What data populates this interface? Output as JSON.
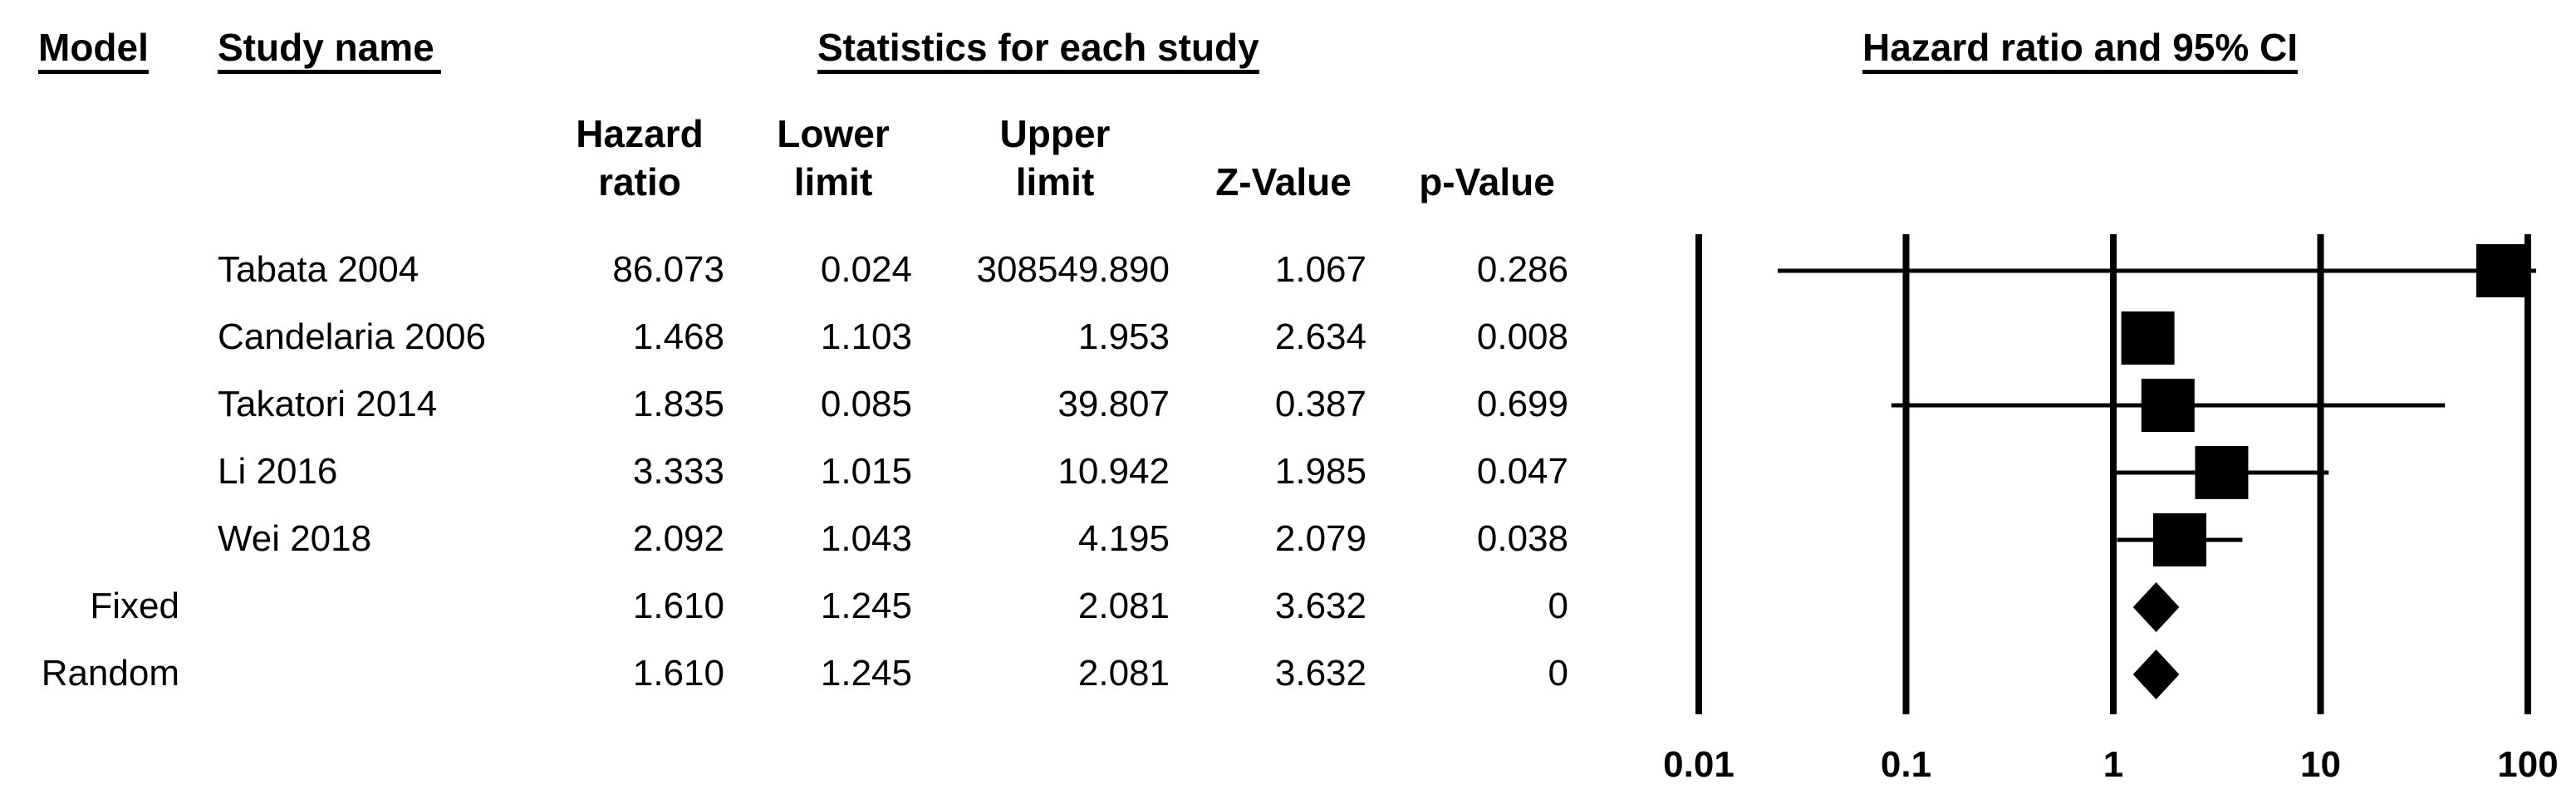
{
  "headers": {
    "model": "Model",
    "study_name": "Study name",
    "statistics": "Statistics for each study",
    "plot": "Hazard ratio and 95% CI"
  },
  "columns": {
    "hazard_ratio": "Hazard\nratio",
    "lower_limit": "Lower\nlimit",
    "upper_limit": "Upper\nlimit",
    "z_value": "Z-Value",
    "p_value": "p-Value"
  },
  "rows": [
    {
      "model": "",
      "study": "Tabata 2004",
      "hr": "86.073",
      "lower": "0.024",
      "upper": "308549.890",
      "z": "1.067",
      "p": "0.286"
    },
    {
      "model": "",
      "study": "Candelaria 2006",
      "hr": "1.468",
      "lower": "1.103",
      "upper": "1.953",
      "z": "2.634",
      "p": "0.008"
    },
    {
      "model": "",
      "study": "Takatori 2014",
      "hr": "1.835",
      "lower": "0.085",
      "upper": "39.807",
      "z": "0.387",
      "p": "0.699"
    },
    {
      "model": "",
      "study": "Li 2016",
      "hr": "3.333",
      "lower": "1.015",
      "upper": "10.942",
      "z": "1.985",
      "p": "0.047"
    },
    {
      "model": "",
      "study": "Wei 2018",
      "hr": "2.092",
      "lower": "1.043",
      "upper": "4.195",
      "z": "2.079",
      "p": "0.038"
    },
    {
      "model": "Fixed",
      "study": "",
      "hr": "1.610",
      "lower": "1.245",
      "upper": "2.081",
      "z": "3.632",
      "p": "0"
    },
    {
      "model": "Random",
      "study": "",
      "hr": "1.610",
      "lower": "1.245",
      "upper": "2.081",
      "z": "3.632",
      "p": "0"
    }
  ],
  "chart_data": {
    "type": "forest",
    "scale": "log",
    "xlim": [
      0.01,
      100
    ],
    "ticks": [
      0.01,
      0.1,
      1,
      10,
      100
    ],
    "tick_labels": [
      "0.01",
      "0.1",
      "1",
      "10",
      "100"
    ],
    "title": "Hazard ratio and 95% CI",
    "grid": true,
    "studies": [
      {
        "label": "Tabata 2004",
        "hr": 86.073,
        "lower": 0.024,
        "upper": 308549.89,
        "marker": "square"
      },
      {
        "label": "Candelaria 2006",
        "hr": 1.468,
        "lower": 1.103,
        "upper": 1.953,
        "marker": "square"
      },
      {
        "label": "Takatori 2014",
        "hr": 1.835,
        "lower": 0.085,
        "upper": 39.807,
        "marker": "square"
      },
      {
        "label": "Li 2016",
        "hr": 3.333,
        "lower": 1.015,
        "upper": 10.942,
        "marker": "square"
      },
      {
        "label": "Wei 2018",
        "hr": 2.092,
        "lower": 1.043,
        "upper": 4.195,
        "marker": "square"
      },
      {
        "label": "Fixed",
        "hr": 1.61,
        "lower": 1.245,
        "upper": 2.081,
        "marker": "diamond"
      },
      {
        "label": "Random",
        "hr": 1.61,
        "lower": 1.245,
        "upper": 2.081,
        "marker": "diamond"
      }
    ]
  }
}
